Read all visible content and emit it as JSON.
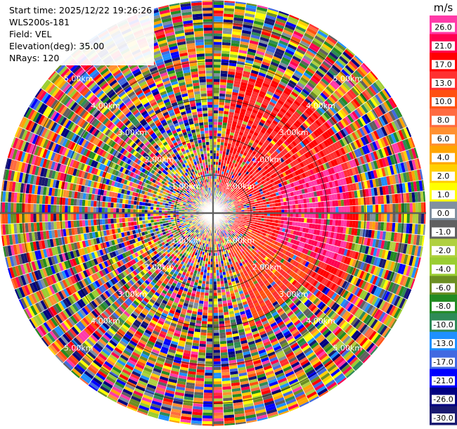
{
  "chart_data": {
    "type": "heatmap",
    "projection": "polar-ppi",
    "metadata": [
      {
        "label": "Start time:",
        "value": "2025/12/22 19:26:26"
      },
      {
        "label": "",
        "value": "WLS200s-181"
      },
      {
        "label": "Field:",
        "value": "VEL"
      },
      {
        "label": "Elevation(deg):",
        "value": "35.00"
      },
      {
        "label": "NRays:",
        "value": "120"
      }
    ],
    "range_rings_km": [
      1,
      2,
      3,
      4,
      5
    ],
    "ring_labels": [
      "1.00km",
      "2.00km",
      "3.00km",
      "4.00km",
      "5.00km"
    ],
    "max_range_km": 5.6,
    "n_rays": 120,
    "colorbar": {
      "unit": "m/s",
      "levels": [
        "26.0",
        "21.0",
        "17.0",
        "13.0",
        "10.0",
        "8.0",
        "6.0",
        "4.0",
        "2.0",
        "1.0",
        "0.0",
        "-1.0",
        "-2.0",
        "-4.0",
        "-6.0",
        "-8.0",
        "-10.0",
        "-13.0",
        "-17.0",
        "-21.0",
        "-26.0",
        "-30.0"
      ],
      "colors": [
        "#ff3aa8",
        "#ff0050",
        "#ff0000",
        "#ff3030",
        "#ff5010",
        "#ff6a40",
        "#ff9030",
        "#ffa500",
        "#ffd000",
        "#ffff00",
        "#8090a0",
        "#606060",
        "#b0d040",
        "#9acd32",
        "#6b8e23",
        "#228b22",
        "#2e8b57",
        "#1e90ff",
        "#4169e1",
        "#0000ff",
        "#000080",
        "#191970"
      ]
    },
    "coherent_regions": [
      {
        "az_from_deg": 10,
        "az_to_deg": 130,
        "range_from_km": 0.6,
        "range_to_km": 3.8,
        "value_ms": 17
      },
      {
        "az_from_deg": 70,
        "az_to_deg": 115,
        "range_from_km": 1.8,
        "range_to_km": 3.6,
        "value_ms": 26
      },
      {
        "az_from_deg": 115,
        "az_to_deg": 160,
        "range_from_km": 1.0,
        "range_to_km": 3.0,
        "value_ms": 13
      }
    ]
  }
}
